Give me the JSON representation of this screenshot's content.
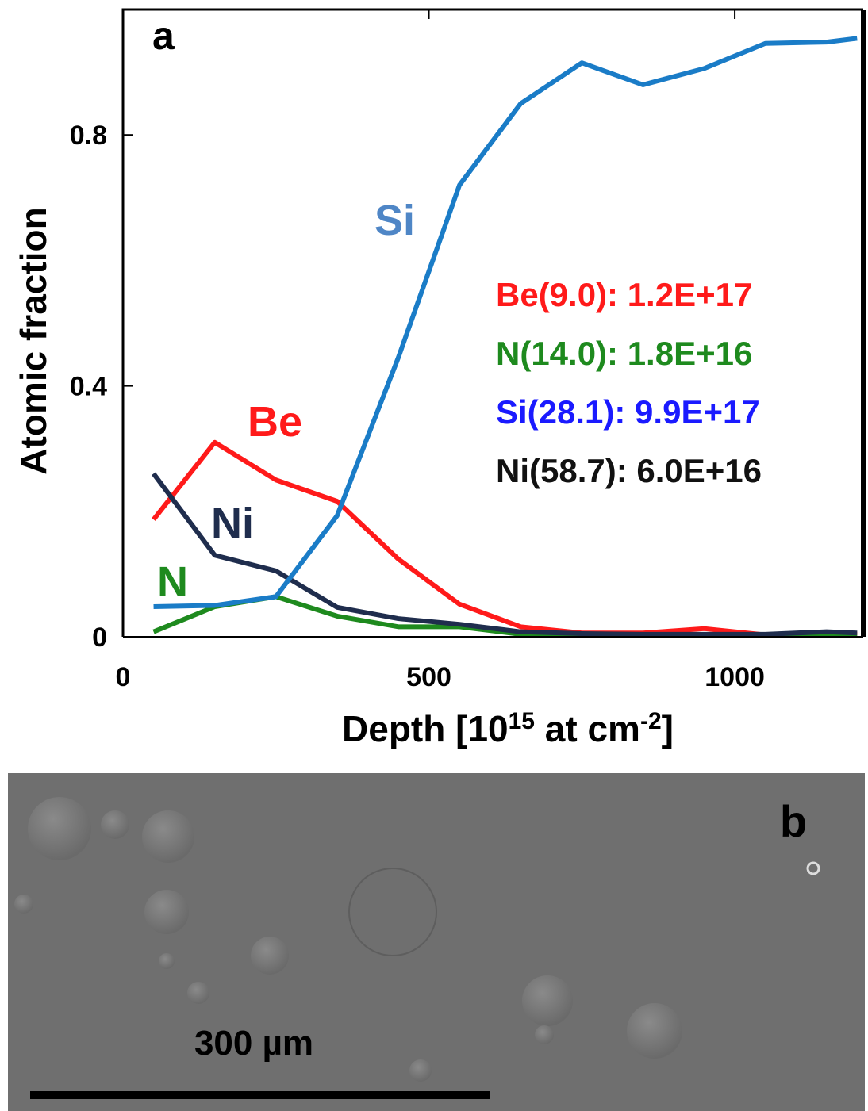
{
  "chart_data": {
    "type": "line",
    "panel_label": "a",
    "y_label": "Atomic fraction",
    "x_label": [
      "Depth [10",
      "15",
      " at cm",
      "-2",
      "]"
    ],
    "x": [
      50,
      150,
      250,
      350,
      450,
      550,
      650,
      750,
      850,
      950,
      1050,
      1150,
      1200
    ],
    "xlim": [
      0,
      1210
    ],
    "xticks": [
      0,
      500,
      1000
    ],
    "ylim": [
      0,
      1
    ],
    "yticks": [
      0,
      0.4,
      0.8
    ],
    "series": [
      {
        "name": "Be",
        "color": "#ff1a1a",
        "values": [
          0.187,
          0.31,
          0.25,
          0.216,
          0.124,
          0.052,
          0.016,
          0.006,
          0.006,
          0.013,
          0.003,
          0.006,
          0.004
        ]
      },
      {
        "name": "N",
        "color": "#1e8a1e",
        "values": [
          0.008,
          0.048,
          0.064,
          0.033,
          0.016,
          0.016,
          0.004,
          0.002,
          0.002,
          0.002,
          0.002,
          0.002,
          0.002
        ]
      },
      {
        "name": "Ni",
        "color": "#1f2d4d",
        "values": [
          0.26,
          0.13,
          0.105,
          0.047,
          0.029,
          0.02,
          0.008,
          0.005,
          0.004,
          0.004,
          0.004,
          0.008,
          0.006
        ]
      },
      {
        "name": "Si",
        "color": "#1a7cc7",
        "values": [
          0.048,
          0.05,
          0.064,
          0.193,
          0.445,
          0.72,
          0.85,
          0.915,
          0.88,
          0.906,
          0.946,
          0.948,
          0.954
        ]
      }
    ],
    "series_label_colors": [
      "#ff1a1a",
      "#1e8a1e",
      "#1f2d4d",
      "#4f86c6"
    ],
    "annotations": [
      {
        "text": "Be(9.0): 1.2E+17",
        "color": "#ff1a1a"
      },
      {
        "text": "N(14.0): 1.8E+16",
        "color": "#1e8a1e"
      },
      {
        "text": "Si(28.1): 9.9E+17",
        "color": "#1a1aff"
      },
      {
        "text": "Ni(58.7): 6.0E+16",
        "color": "#111111"
      }
    ]
  },
  "panel_b": {
    "label": "b",
    "scale_bar": "300 µm"
  }
}
